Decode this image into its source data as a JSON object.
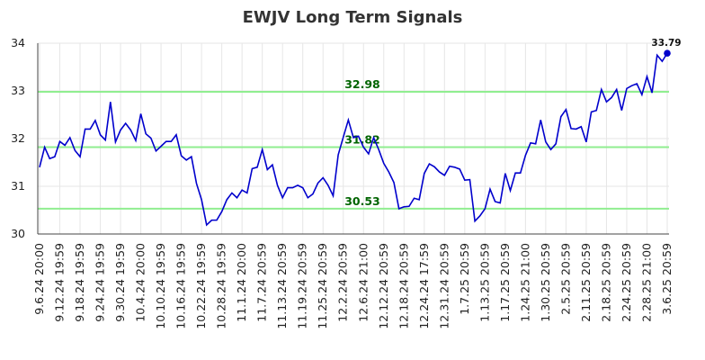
{
  "chart_data": {
    "type": "line",
    "title": "EWJV Long Term Signals",
    "xlabel": "",
    "ylabel": "",
    "ylim": [
      30,
      34
    ],
    "yticks": [
      "30",
      "31",
      "32",
      "33",
      "34"
    ],
    "grid": true,
    "line_color": "#0000cc",
    "reference_color": "#90ee90",
    "reference_label_color": "#006400",
    "reference_lines": [
      {
        "value": 32.98,
        "label": "32.98"
      },
      {
        "value": 31.82,
        "label": "31.82"
      },
      {
        "value": 30.53,
        "label": "30.53"
      }
    ],
    "last_value_label": "33.79",
    "xtick_labels": [
      "9.6.24 20:00",
      "9.12.24 19:59",
      "9.18.24 19:59",
      "9.24.24 19:59",
      "9.30.24 19:59",
      "10.4.24 20:00",
      "10.10.24 19:59",
      "10.16.24 19:59",
      "10.22.24 19:59",
      "10.28.24 19:59",
      "11.1.24 20:00",
      "11.7.24 20:59",
      "11.13.24 20:59",
      "11.19.24 20:59",
      "11.25.24 20:59",
      "12.2.24 20:59",
      "12.6.24 21:00",
      "12.12.24 20:59",
      "12.18.24 20:59",
      "12.24.24 17:59",
      "12.31.24 20:59",
      "1.7.25 20:59",
      "1.13.25 20:59",
      "1.17.25 20:59",
      "1.24.25 21:00",
      "1.30.25 20:59",
      "2.5.25 20:59",
      "2.11.25 20:59",
      "2.18.25 20:59",
      "2.24.25 20:59",
      "2.28.25 21:00",
      "3.6.25 20:59"
    ],
    "x_index_max": 124,
    "series": [
      {
        "values": [
          31.4,
          31.82,
          31.58,
          31.62,
          31.94,
          31.86,
          32.02,
          31.75,
          31.62,
          32.2,
          32.2,
          32.38,
          32.08,
          31.97,
          32.77,
          31.93,
          32.18,
          32.32,
          32.18,
          31.96,
          32.52,
          32.1,
          32.01,
          31.74,
          31.84,
          31.94,
          31.94,
          32.08,
          31.64,
          31.55,
          31.62,
          31.06,
          30.72,
          30.19,
          30.29,
          30.29,
          30.47,
          30.72,
          30.86,
          30.76,
          30.92,
          30.86,
          31.37,
          31.4,
          31.77,
          31.35,
          31.45,
          31.02,
          30.76,
          30.97,
          30.97,
          31.02,
          30.97,
          30.76,
          30.84,
          31.07,
          31.18,
          31.02,
          30.8,
          31.66,
          32.03,
          32.39,
          32.02,
          32.05,
          31.82,
          31.68,
          32.02,
          31.77,
          31.48,
          31.3,
          31.08,
          30.53,
          30.57,
          30.58,
          30.75,
          30.72,
          31.27,
          31.47,
          31.41,
          31.3,
          31.23,
          31.42,
          31.4,
          31.36,
          31.13,
          31.14,
          30.27,
          30.38,
          30.53,
          30.94,
          30.68,
          30.65,
          31.27,
          30.91,
          31.28,
          31.28,
          31.65,
          31.91,
          31.89,
          32.39,
          31.93,
          31.77,
          31.89,
          32.46,
          32.61,
          32.21,
          32.2,
          32.25,
          31.93,
          32.56,
          32.59,
          33.03,
          32.77,
          32.86,
          33.03,
          32.59,
          33.05,
          33.11,
          33.15,
          32.92,
          33.3,
          32.96,
          33.75,
          33.62,
          33.79
        ]
      }
    ]
  }
}
